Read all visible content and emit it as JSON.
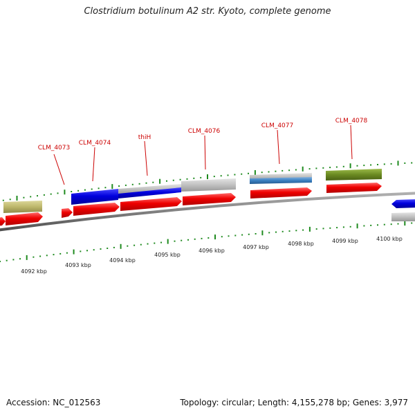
{
  "title": "Clostridium botulinum A2 str. Kyoto, complete genome",
  "footer": {
    "accession": "Accession: NC_012563",
    "summary": "Topology: circular; Length: 4,155,278 bp; Genes: 3,977"
  },
  "colors": {
    "cds": "#ee0000",
    "gene_blue": "#0000dd",
    "gene_gray": "#c0c0c0",
    "gene_steelblue": "#3a7fc0",
    "gene_olive": "#6b8a22",
    "gene_khaki": "#bdb76b",
    "backbone": "#808080",
    "tick": "#1e8a1e",
    "label": "#cc0000"
  },
  "genes": [
    {
      "name": "CLM_4073"
    },
    {
      "name": "CLM_4074"
    },
    {
      "name": "thiH"
    },
    {
      "name": "CLM_4076"
    },
    {
      "name": "CLM_4077"
    },
    {
      "name": "CLM_4078"
    }
  ],
  "kbp_labels": [
    "4092 kbp",
    "4093 kbp",
    "4094 kbp",
    "4095 kbp",
    "4096 kbp",
    "4097 kbp",
    "4098 kbp",
    "4099 kbp",
    "4100 kbp"
  ]
}
